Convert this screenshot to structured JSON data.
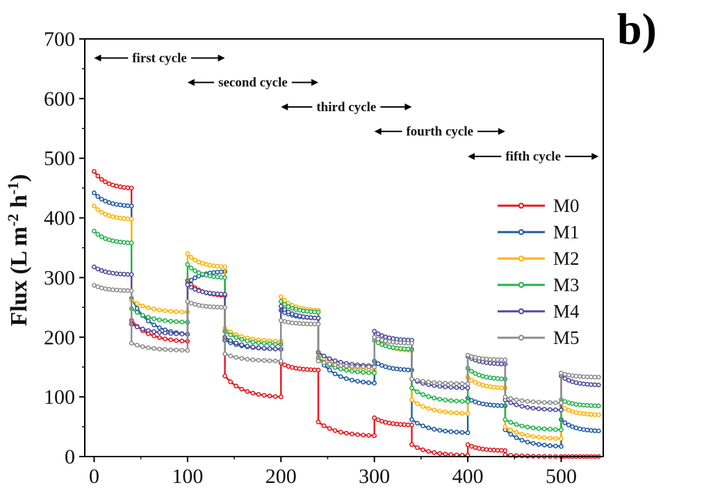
{
  "panel_label": "b)",
  "chart_data": {
    "type": "line",
    "title": "",
    "xlabel": "",
    "ylabel_main": "Flux (L m",
    "ylabel_sup1": "-2",
    "ylabel_mid": " h",
    "ylabel_sup2": "-1",
    "ylabel_end": ")",
    "xlim": [
      -10,
      545
    ],
    "ylim": [
      0,
      700
    ],
    "xticks": [
      0,
      100,
      200,
      300,
      400,
      500
    ],
    "yticks": [
      0,
      100,
      200,
      300,
      400,
      500,
      600,
      700
    ],
    "grid": false,
    "legend_position": "right",
    "cycle_annotations": [
      {
        "label": "first cycle",
        "x_start": 0,
        "x_end": 140,
        "y": 668
      },
      {
        "label": "second cycle",
        "x_start": 100,
        "x_end": 240,
        "y": 627
      },
      {
        "label": "third cycle",
        "x_start": 200,
        "x_end": 340,
        "y": 586
      },
      {
        "label": "fourth cycle",
        "x_start": 300,
        "x_end": 440,
        "y": 545
      },
      {
        "label": "fifth cycle",
        "x_start": 400,
        "x_end": 540,
        "y": 503
      }
    ],
    "segments": [
      [
        0,
        40
      ],
      [
        40,
        100
      ],
      [
        100,
        140
      ],
      [
        140,
        200
      ],
      [
        200,
        240
      ],
      [
        240,
        300
      ],
      [
        300,
        340
      ],
      [
        340,
        400
      ],
      [
        400,
        440
      ],
      [
        440,
        500
      ],
      [
        500,
        540
      ]
    ],
    "series": [
      {
        "name": "M0",
        "color": "#e8151b",
        "levels": [
          [
            478,
            450
          ],
          [
            228,
            193
          ],
          [
            295,
            270
          ],
          [
            135,
            100
          ],
          [
            157,
            145
          ],
          [
            58,
            35
          ],
          [
            65,
            53
          ],
          [
            20,
            2
          ],
          [
            20,
            10
          ],
          [
            3,
            0
          ],
          [
            0,
            0
          ]
        ]
      },
      {
        "name": "M1",
        "color": "#1f5aa6",
        "levels": [
          [
            442,
            420
          ],
          [
            265,
            205
          ],
          [
            290,
            310
          ],
          [
            195,
            180
          ],
          [
            245,
            232
          ],
          [
            165,
            123
          ],
          [
            160,
            145
          ],
          [
            62,
            40
          ],
          [
            98,
            85
          ],
          [
            45,
            17
          ],
          [
            62,
            43
          ]
        ]
      },
      {
        "name": "M2",
        "color": "#ffb300",
        "levels": [
          [
            420,
            398
          ],
          [
            262,
            242
          ],
          [
            340,
            318
          ],
          [
            215,
            193
          ],
          [
            268,
            245
          ],
          [
            172,
            145
          ],
          [
            200,
            178
          ],
          [
            95,
            72
          ],
          [
            133,
            115
          ],
          [
            50,
            30
          ],
          [
            85,
            70
          ]
        ]
      },
      {
        "name": "M3",
        "color": "#22b24c",
        "levels": [
          [
            378,
            358
          ],
          [
            248,
            225
          ],
          [
            322,
            300
          ],
          [
            210,
            188
          ],
          [
            260,
            242
          ],
          [
            165,
            140
          ],
          [
            195,
            180
          ],
          [
            115,
            92
          ],
          [
            148,
            130
          ],
          [
            62,
            45
          ],
          [
            95,
            85
          ]
        ]
      },
      {
        "name": "M4",
        "color": "#4b4aa0",
        "levels": [
          [
            318,
            305
          ],
          [
            222,
            205
          ],
          [
            288,
            272
          ],
          [
            200,
            180
          ],
          [
            252,
            232
          ],
          [
            175,
            152
          ],
          [
            210,
            195
          ],
          [
            130,
            115
          ],
          [
            168,
            155
          ],
          [
            95,
            78
          ],
          [
            135,
            120
          ]
        ]
      },
      {
        "name": "M5",
        "color": "#8d8d8d",
        "levels": [
          [
            287,
            278
          ],
          [
            190,
            178
          ],
          [
            260,
            250
          ],
          [
            172,
            160
          ],
          [
            228,
            222
          ],
          [
            160,
            150
          ],
          [
            200,
            190
          ],
          [
            130,
            122
          ],
          [
            170,
            162
          ],
          [
            100,
            90
          ],
          [
            140,
            133
          ]
        ]
      }
    ]
  }
}
